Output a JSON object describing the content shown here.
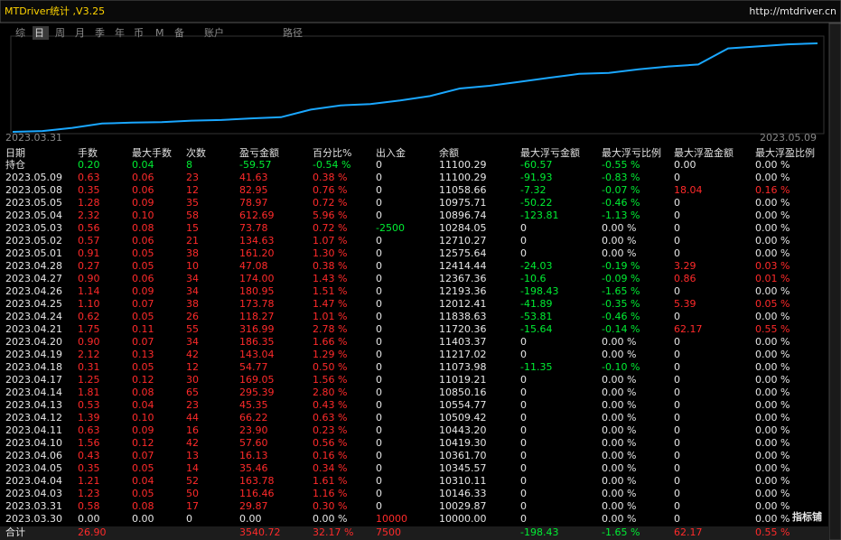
{
  "header": {
    "title": "MTDriver统计 ,V3.25",
    "url": "http://mtdriver.cn"
  },
  "tabs": [
    "综",
    "日",
    "周",
    "月",
    "季",
    "年",
    "币",
    "M",
    "备",
    "账户",
    "路径"
  ],
  "chart": {
    "start_label": "2023.03.31",
    "end_label": "2023.05.09"
  },
  "table": {
    "columns": [
      "日期",
      "手数",
      "最大手数",
      "次数",
      "盈亏金额",
      "百分比%",
      "出入金",
      "余额",
      "最大浮亏金额",
      "最大浮亏比例",
      "最大浮盈金额",
      "最大浮盈比例"
    ],
    "position": [
      "持仓",
      "0.20",
      "0.04",
      "8",
      "-59.57",
      "-0.54 %",
      "0",
      "11100.29",
      "-60.57",
      "-0.55 %",
      "0.00",
      "0.00 %"
    ],
    "rows": [
      [
        "2023.05.09",
        "0.63",
        "0.06",
        "23",
        "41.63",
        "0.38 %",
        "0",
        "11100.29",
        "-91.93",
        "-0.83 %",
        "0",
        "0.00 %"
      ],
      [
        "2023.05.08",
        "0.35",
        "0.06",
        "12",
        "82.95",
        "0.76 %",
        "0",
        "11058.66",
        "-7.32",
        "-0.07 %",
        "18.04",
        "0.16 %"
      ],
      [
        "2023.05.05",
        "1.28",
        "0.09",
        "35",
        "78.97",
        "0.72 %",
        "0",
        "10975.71",
        "-50.22",
        "-0.46 %",
        "0",
        "0.00 %"
      ],
      [
        "2023.05.04",
        "2.32",
        "0.10",
        "58",
        "612.69",
        "5.96 %",
        "0",
        "10896.74",
        "-123.81",
        "-1.13 %",
        "0",
        "0.00 %"
      ],
      [
        "2023.05.03",
        "0.56",
        "0.08",
        "15",
        "73.78",
        "0.72 %",
        "-2500",
        "10284.05",
        "0",
        "0.00 %",
        "0",
        "0.00 %"
      ],
      [
        "2023.05.02",
        "0.57",
        "0.06",
        "21",
        "134.63",
        "1.07 %",
        "0",
        "12710.27",
        "0",
        "0.00 %",
        "0",
        "0.00 %"
      ],
      [
        "2023.05.01",
        "0.91",
        "0.05",
        "38",
        "161.20",
        "1.30 %",
        "0",
        "12575.64",
        "0",
        "0.00 %",
        "0",
        "0.00 %"
      ],
      [
        "2023.04.28",
        "0.27",
        "0.05",
        "10",
        "47.08",
        "0.38 %",
        "0",
        "12414.44",
        "-24.03",
        "-0.19 %",
        "3.29",
        "0.03 %"
      ],
      [
        "2023.04.27",
        "0.90",
        "0.06",
        "34",
        "174.00",
        "1.43 %",
        "0",
        "12367.36",
        "-10.6",
        "-0.09 %",
        "0.86",
        "0.01 %"
      ],
      [
        "2023.04.26",
        "1.14",
        "0.09",
        "34",
        "180.95",
        "1.51 %",
        "0",
        "12193.36",
        "-198.43",
        "-1.65 %",
        "0",
        "0.00 %"
      ],
      [
        "2023.04.25",
        "1.10",
        "0.07",
        "38",
        "173.78",
        "1.47 %",
        "0",
        "12012.41",
        "-41.89",
        "-0.35 %",
        "5.39",
        "0.05 %"
      ],
      [
        "2023.04.24",
        "0.62",
        "0.05",
        "26",
        "118.27",
        "1.01 %",
        "0",
        "11838.63",
        "-53.81",
        "-0.46 %",
        "0",
        "0.00 %"
      ],
      [
        "2023.04.21",
        "1.75",
        "0.11",
        "55",
        "316.99",
        "2.78 %",
        "0",
        "11720.36",
        "-15.64",
        "-0.14 %",
        "62.17",
        "0.55 %"
      ],
      [
        "2023.04.20",
        "0.90",
        "0.07",
        "34",
        "186.35",
        "1.66 %",
        "0",
        "11403.37",
        "0",
        "0.00 %",
        "0",
        "0.00 %"
      ],
      [
        "2023.04.19",
        "2.12",
        "0.13",
        "42",
        "143.04",
        "1.29 %",
        "0",
        "11217.02",
        "0",
        "0.00 %",
        "0",
        "0.00 %"
      ],
      [
        "2023.04.18",
        "0.31",
        "0.05",
        "12",
        "54.77",
        "0.50 %",
        "0",
        "11073.98",
        "-11.35",
        "-0.10 %",
        "0",
        "0.00 %"
      ],
      [
        "2023.04.17",
        "1.25",
        "0.12",
        "30",
        "169.05",
        "1.56 %",
        "0",
        "11019.21",
        "0",
        "0.00 %",
        "0",
        "0.00 %"
      ],
      [
        "2023.04.14",
        "1.81",
        "0.08",
        "65",
        "295.39",
        "2.80 %",
        "0",
        "10850.16",
        "0",
        "0.00 %",
        "0",
        "0.00 %"
      ],
      [
        "2023.04.13",
        "0.53",
        "0.04",
        "23",
        "45.35",
        "0.43 %",
        "0",
        "10554.77",
        "0",
        "0.00 %",
        "0",
        "0.00 %"
      ],
      [
        "2023.04.12",
        "1.39",
        "0.10",
        "44",
        "66.22",
        "0.63 %",
        "0",
        "10509.42",
        "0",
        "0.00 %",
        "0",
        "0.00 %"
      ],
      [
        "2023.04.11",
        "0.63",
        "0.09",
        "16",
        "23.90",
        "0.23 %",
        "0",
        "10443.20",
        "0",
        "0.00 %",
        "0",
        "0.00 %"
      ],
      [
        "2023.04.10",
        "1.56",
        "0.12",
        "42",
        "57.60",
        "0.56 %",
        "0",
        "10419.30",
        "0",
        "0.00 %",
        "0",
        "0.00 %"
      ],
      [
        "2023.04.06",
        "0.43",
        "0.07",
        "13",
        "16.13",
        "0.16 %",
        "0",
        "10361.70",
        "0",
        "0.00 %",
        "0",
        "0.00 %"
      ],
      [
        "2023.04.05",
        "0.35",
        "0.05",
        "14",
        "35.46",
        "0.34 %",
        "0",
        "10345.57",
        "0",
        "0.00 %",
        "0",
        "0.00 %"
      ],
      [
        "2023.04.04",
        "1.21",
        "0.04",
        "52",
        "163.78",
        "1.61 %",
        "0",
        "10310.11",
        "0",
        "0.00 %",
        "0",
        "0.00 %"
      ],
      [
        "2023.04.03",
        "1.23",
        "0.05",
        "50",
        "116.46",
        "1.16 %",
        "0",
        "10146.33",
        "0",
        "0.00 %",
        "0",
        "0.00 %"
      ],
      [
        "2023.03.31",
        "0.58",
        "0.08",
        "17",
        "29.87",
        "0.30 %",
        "0",
        "10029.87",
        "0",
        "0.00 %",
        "0",
        "0.00 %"
      ],
      [
        "2023.03.30",
        "0.00",
        "0.00",
        "0",
        "0.00",
        "0.00 %",
        "10000",
        "10000.00",
        "0",
        "0.00 %",
        "0",
        "0.00 %"
      ]
    ],
    "total": [
      "合计",
      "26.90",
      null,
      null,
      "3540.72",
      "32.17 %",
      "7500",
      null,
      "-198.43",
      "-1.65 %",
      "62.17",
      "0.55 %"
    ]
  },
  "watermark": "指标铺"
}
